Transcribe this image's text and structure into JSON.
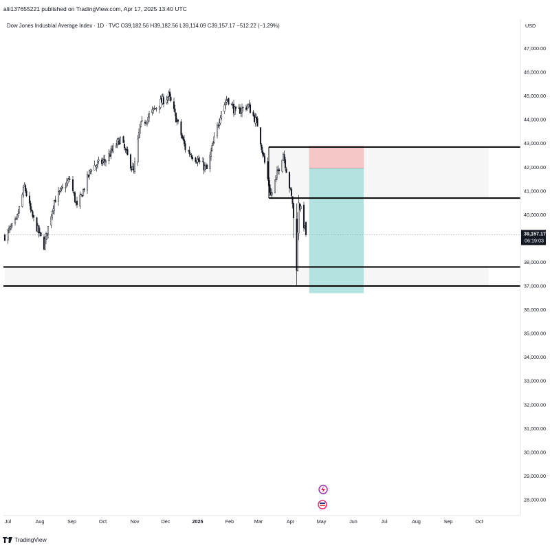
{
  "header": {
    "publish_line": "alii137655221 published on TradingView.com, Apr 17, 2025 13:40 UTC",
    "symbol": "Dow Jones Industrial Average Index · 1D · TVC",
    "open": "O39,182.56",
    "high": "H39,182.56",
    "low": "L39,114.09",
    "close": "C39,157.17",
    "change": "−512.22 (−1.29%)"
  },
  "price_axis": {
    "currency": "USD",
    "labels": [
      "47,000.00",
      "46,000.00",
      "45,000.00",
      "44,000.00",
      "43,000.00",
      "42,000.00",
      "41,000.00",
      "40,000.00",
      "38,000.00",
      "37,000.00",
      "36,000.00",
      "35,000.00",
      "34,000.00",
      "33,000.00",
      "32,000.00",
      "31,000.00",
      "30,000.00",
      "29,000.00",
      "28,000.00"
    ],
    "current_price": "39,157.17",
    "countdown": "06:19:03"
  },
  "footer": {
    "brand": "TradingView"
  },
  "colors": {
    "up": "#ffffff",
    "down": "#131722",
    "target_zone": "#b2e3e0",
    "stop_zone": "#f7c6c6",
    "zone_band": "#f6f6f6"
  },
  "chart_data": {
    "type": "candlestick",
    "title": "Dow Jones Industrial Average Index · 1D · TVC",
    "timeframe": "1D",
    "ylim": [
      27400,
      47800
    ],
    "x_labels": [
      "Jul",
      "Aug",
      "Sep",
      "Oct",
      "Nov",
      "Dec",
      "2025",
      "Feb",
      "Mar",
      "Apr",
      "May",
      "Jun",
      "Jul",
      "Aug",
      "Sep",
      "Oct"
    ],
    "x_label_dates": [
      "2024-07-01",
      "2024-08-01",
      "2024-09-01",
      "2024-10-01",
      "2024-11-01",
      "2024-12-01",
      "2025-01-01",
      "2025-02-01",
      "2025-03-01",
      "2025-04-01",
      "2025-05-01",
      "2025-06-01",
      "2025-07-01",
      "2025-08-01",
      "2025-09-01",
      "2025-10-01"
    ],
    "current_price": 39157.17,
    "approx_close_path": [
      [
        "2024-06-28",
        39100
      ],
      [
        "2024-07-09",
        39700
      ],
      [
        "2024-07-17",
        41200
      ],
      [
        "2024-07-24",
        40000
      ],
      [
        "2024-08-05",
        38700
      ],
      [
        "2024-08-15",
        40600
      ],
      [
        "2024-08-30",
        41500
      ],
      [
        "2024-09-06",
        40300
      ],
      [
        "2024-09-20",
        42000
      ],
      [
        "2024-10-04",
        42300
      ],
      [
        "2024-10-18",
        43200
      ],
      [
        "2024-10-31",
        41800
      ],
      [
        "2024-11-06",
        43700
      ],
      [
        "2024-11-25",
        44700
      ],
      [
        "2024-12-04",
        45000
      ],
      [
        "2024-12-13",
        43800
      ],
      [
        "2024-12-20",
        42800
      ],
      [
        "2025-01-10",
        41900
      ],
      [
        "2025-01-24",
        44400
      ],
      [
        "2025-01-30",
        44900
      ],
      [
        "2025-02-07",
        44300
      ],
      [
        "2025-02-19",
        44600
      ],
      [
        "2025-02-28",
        43800
      ],
      [
        "2025-03-13",
        40800
      ],
      [
        "2025-03-25",
        42600
      ],
      [
        "2025-04-03",
        40500
      ],
      [
        "2025-04-07",
        37800
      ],
      [
        "2025-04-09",
        40600
      ],
      [
        "2025-04-16",
        39157.17
      ]
    ],
    "horizontal_lines": [
      42850,
      40700,
      37800,
      37000
    ],
    "zones": [
      {
        "from": "2025-03-11",
        "to": "2025-10-10",
        "top": 42850,
        "bottom": 40700
      },
      {
        "from": "2024-06-28",
        "to": "2025-10-10",
        "top": 37800,
        "bottom": 37000
      }
    ],
    "position_tool": {
      "from": "2025-04-19",
      "to": "2025-06-11",
      "stop_top": 42900,
      "entry": 41950,
      "target": 36700
    },
    "grid": false
  }
}
